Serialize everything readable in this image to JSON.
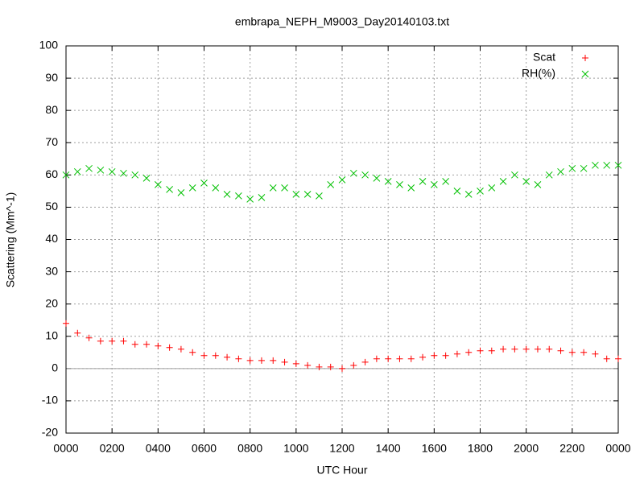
{
  "chart_data": {
    "type": "scatter",
    "title": "embrapa_NEPH_M9003_Day20140103.txt",
    "x_label": "UTC Hour",
    "y_label": "Scattering (Mm^-1)",
    "x": [
      0,
      0.5,
      1,
      1.5,
      2,
      2.5,
      3,
      3.5,
      4,
      4.5,
      5,
      5.5,
      6,
      6.5,
      7,
      7.5,
      8,
      8.5,
      9,
      9.5,
      10,
      10.5,
      11,
      11.5,
      12,
      12.5,
      13,
      13.5,
      14,
      14.5,
      15,
      15.5,
      16,
      16.5,
      17,
      17.5,
      18,
      18.5,
      19,
      19.5,
      20,
      20.5,
      21,
      21.5,
      22,
      22.5,
      23,
      23.5,
      24
    ],
    "series": [
      {
        "name": "Scat",
        "color": "#ff0000",
        "marker": "plus",
        "values": [
          14,
          11,
          9.5,
          8.5,
          8.5,
          8.5,
          7.5,
          7.5,
          7,
          6.5,
          6,
          5,
          4,
          4,
          3.5,
          3,
          2.5,
          2.5,
          2.5,
          2,
          1.5,
          1,
          0.5,
          0.5,
          0,
          1,
          2,
          3,
          3,
          3,
          3,
          3.5,
          4,
          4,
          4.5,
          5,
          5.5,
          5.5,
          6,
          6,
          6,
          6,
          6,
          5.5,
          5,
          5,
          4.5,
          3,
          3
        ]
      },
      {
        "name": "RH(%)",
        "color": "#00c000",
        "marker": "cross",
        "values": [
          60,
          61,
          62,
          61.5,
          61,
          60.5,
          60,
          59,
          57,
          55.5,
          54.5,
          56,
          57.5,
          56,
          54,
          53.5,
          52.5,
          53,
          56,
          56,
          54,
          54,
          53.5,
          57,
          58.5,
          60.5,
          60,
          59,
          58,
          57,
          56,
          58,
          57,
          58,
          55,
          54,
          55,
          56,
          58,
          60,
          58,
          57,
          60,
          61,
          62,
          62,
          63,
          63,
          63
        ]
      }
    ],
    "xlim": [
      0,
      24
    ],
    "xticks": [
      {
        "value": 0,
        "label": "0000"
      },
      {
        "value": 2,
        "label": "0200"
      },
      {
        "value": 4,
        "label": "0400"
      },
      {
        "value": 6,
        "label": "0600"
      },
      {
        "value": 8,
        "label": "0800"
      },
      {
        "value": 10,
        "label": "1000"
      },
      {
        "value": 12,
        "label": "1200"
      },
      {
        "value": 14,
        "label": "1400"
      },
      {
        "value": 16,
        "label": "1600"
      },
      {
        "value": 18,
        "label": "1800"
      },
      {
        "value": 20,
        "label": "2000"
      },
      {
        "value": 22,
        "label": "2200"
      },
      {
        "value": 24,
        "label": "0000"
      }
    ],
    "ylim": [
      -20,
      100
    ],
    "yticks": [
      -20,
      -10,
      0,
      10,
      20,
      30,
      40,
      50,
      60,
      70,
      80,
      90,
      100
    ],
    "grid": true,
    "zero_axis": true,
    "legend": "top-right"
  }
}
